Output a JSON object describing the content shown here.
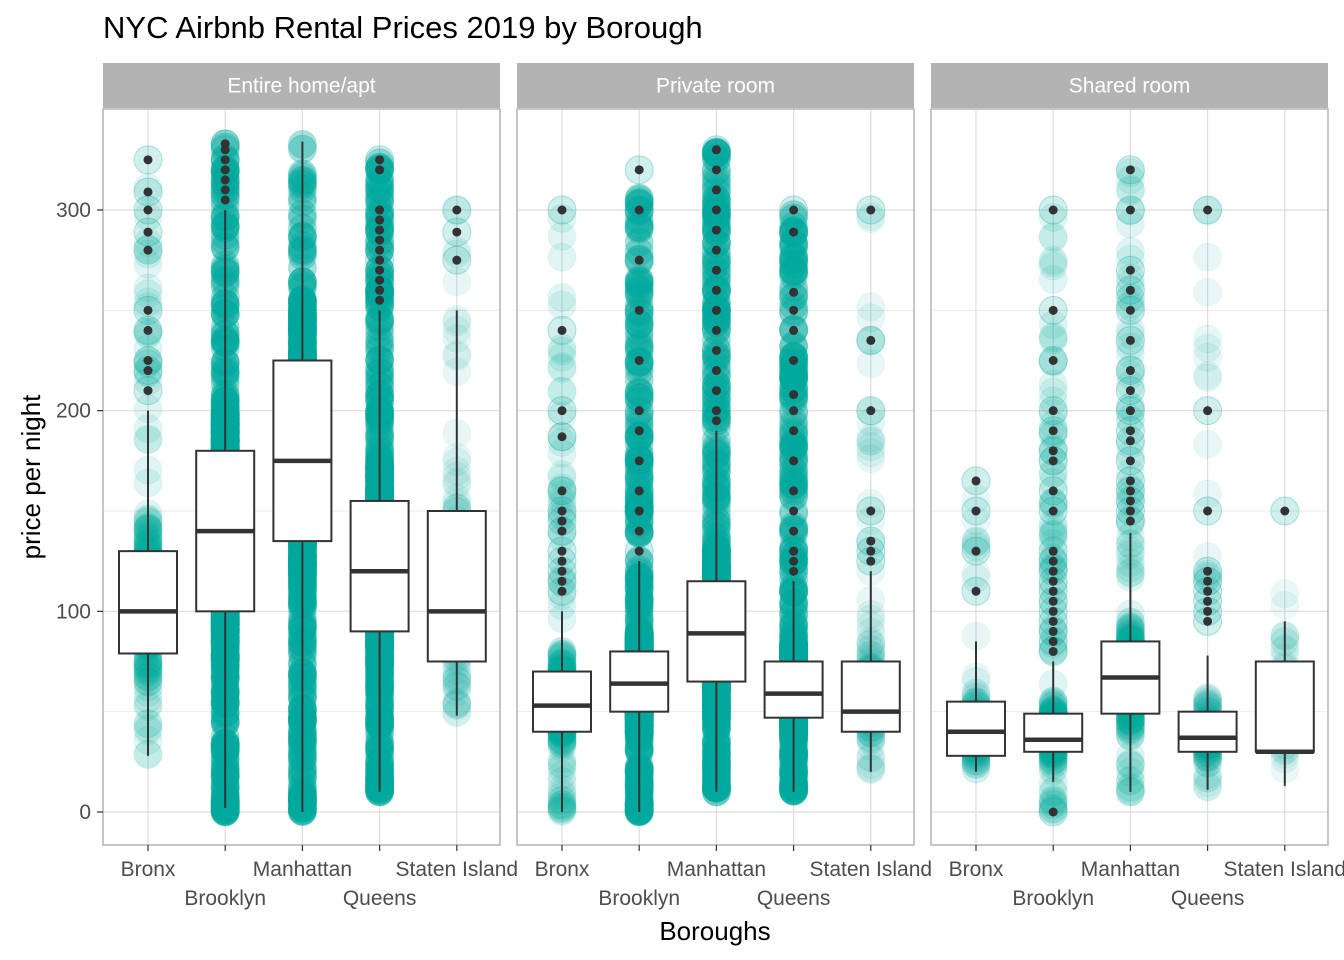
{
  "chart_data": {
    "type": "boxplot",
    "title": "NYC Airbnb Rental Prices 2019 by Borough",
    "xlabel": "Boroughs",
    "ylabel": "price per night",
    "ylim": [
      -15,
      350
    ],
    "yticks": [
      0,
      100,
      200,
      300
    ],
    "grid": true,
    "legend": "none",
    "point_color": "#00A99D",
    "outlier_color": "#333333",
    "box_fill": "#ffffff",
    "strip_fill": "#b3b3b3",
    "categories": [
      "Bronx",
      "Brooklyn",
      "Manhattan",
      "Queens",
      "Staten Island"
    ],
    "panels": [
      {
        "name": "Entire home/apt",
        "boxes": [
          {
            "category": "Bronx",
            "min": 28,
            "q1": 79,
            "median": 100,
            "q3": 130,
            "max": 200,
            "outliers": [
              210,
              220,
              225,
              240,
              250,
              280,
              289,
              300,
              309,
              325
            ],
            "jitter_min": 28,
            "jitter_max": 325,
            "density": "medium"
          },
          {
            "category": "Brooklyn",
            "min": 2,
            "q1": 100,
            "median": 140,
            "q3": 180,
            "max": 300,
            "outliers": [
              305,
              310,
              315,
              320,
              325,
              330,
              333
            ],
            "jitter_min": 0,
            "jitter_max": 333,
            "density": "high"
          },
          {
            "category": "Manhattan",
            "min": 0,
            "q1": 135,
            "median": 175,
            "q3": 225,
            "max": 334,
            "outliers": [],
            "jitter_min": 0,
            "jitter_max": 334,
            "density": "high"
          },
          {
            "category": "Queens",
            "min": 10,
            "q1": 90,
            "median": 120,
            "q3": 155,
            "max": 250,
            "outliers": [
              255,
              260,
              265,
              270,
              275,
              280,
              285,
              290,
              295,
              300,
              320,
              325
            ],
            "jitter_min": 10,
            "jitter_max": 325,
            "density": "high"
          },
          {
            "category": "Staten Island",
            "min": 48,
            "q1": 75,
            "median": 100,
            "q3": 150,
            "max": 250,
            "outliers": [
              275,
              289,
              300
            ],
            "jitter_min": 48,
            "jitter_max": 300,
            "density": "low"
          }
        ]
      },
      {
        "name": "Private room",
        "boxes": [
          {
            "category": "Bronx",
            "min": 0,
            "q1": 40,
            "median": 53,
            "q3": 70,
            "max": 100,
            "outliers": [
              110,
              115,
              120,
              125,
              130,
              140,
              145,
              150,
              160,
              187,
              200,
              240,
              300
            ],
            "jitter_min": 0,
            "jitter_max": 300,
            "density": "medium"
          },
          {
            "category": "Brooklyn",
            "min": 0,
            "q1": 50,
            "median": 64,
            "q3": 80,
            "max": 125,
            "outliers": [
              130,
              140,
              150,
              160,
              175,
              190,
              200,
              225,
              250,
              275,
              300,
              320
            ],
            "jitter_min": 0,
            "jitter_max": 320,
            "density": "high"
          },
          {
            "category": "Manhattan",
            "min": 10,
            "q1": 65,
            "median": 89,
            "q3": 115,
            "max": 190,
            "outliers": [
              195,
              200,
              210,
              220,
              230,
              240,
              250,
              260,
              270,
              280,
              290,
              300,
              310,
              320,
              330
            ],
            "jitter_min": 10,
            "jitter_max": 333,
            "density": "high"
          },
          {
            "category": "Queens",
            "min": 10,
            "q1": 47,
            "median": 59,
            "q3": 75,
            "max": 115,
            "outliers": [
              120,
              125,
              130,
              140,
              150,
              160,
              175,
              190,
              200,
              208,
              225,
              240,
              250,
              259,
              289,
              300
            ],
            "jitter_min": 10,
            "jitter_max": 300,
            "density": "high"
          },
          {
            "category": "Staten Island",
            "min": 20,
            "q1": 40,
            "median": 50,
            "q3": 75,
            "max": 120,
            "outliers": [
              125,
              130,
              135,
              150,
              200,
              235,
              300
            ],
            "jitter_min": 20,
            "jitter_max": 300,
            "density": "low"
          }
        ]
      },
      {
        "name": "Shared room",
        "boxes": [
          {
            "category": "Bronx",
            "min": 20,
            "q1": 28,
            "median": 40,
            "q3": 55,
            "max": 85,
            "outliers": [
              110,
              130,
              150,
              165
            ],
            "jitter_min": 20,
            "jitter_max": 165,
            "density": "low"
          },
          {
            "category": "Brooklyn",
            "min": 15,
            "q1": 30,
            "median": 36,
            "q3": 49,
            "max": 75,
            "outliers": [
              0,
              80,
              85,
              90,
              95,
              100,
              105,
              110,
              115,
              120,
              125,
              130,
              150,
              160,
              175,
              180,
              190,
              200,
              225,
              250,
              300
            ],
            "jitter_min": 0,
            "jitter_max": 300,
            "density": "medium"
          },
          {
            "category": "Manhattan",
            "min": 10,
            "q1": 49,
            "median": 67,
            "q3": 85,
            "max": 139,
            "outliers": [
              145,
              150,
              155,
              160,
              165,
              175,
              185,
              190,
              200,
              210,
              220,
              235,
              250,
              260,
              270,
              300,
              320
            ],
            "jitter_min": 10,
            "jitter_max": 320,
            "density": "medium"
          },
          {
            "category": "Queens",
            "min": 11,
            "q1": 30,
            "median": 37,
            "q3": 50,
            "max": 78,
            "outliers": [
              95,
              100,
              105,
              110,
              115,
              120,
              150,
              200,
              300
            ],
            "jitter_min": 11,
            "jitter_max": 300,
            "density": "low"
          },
          {
            "category": "Staten Island",
            "min": 13,
            "q1": 30,
            "median": 30,
            "q3": 75,
            "max": 95,
            "outliers": [
              150
            ],
            "jitter_min": 13,
            "jitter_max": 150,
            "density": "sparse"
          }
        ]
      }
    ]
  }
}
